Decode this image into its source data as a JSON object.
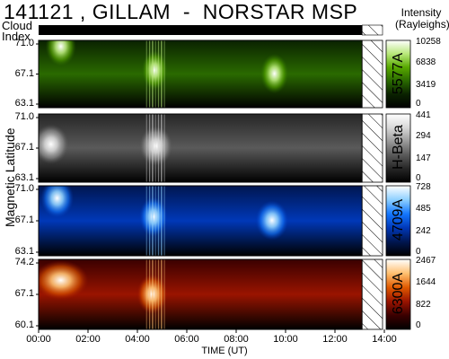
{
  "header": {
    "title": "141121 , GILLAM  -  NORSTAR MSP",
    "cloud_label": "Cloud Index",
    "intensity_label": "Intensity (Rayleighs)"
  },
  "axes": {
    "ylabel": "Magnetic  Latitude",
    "xlabel": "TIME (UT)"
  },
  "chart_data": {
    "type": "heatmap",
    "title": "141121 , GILLAM  -  NORSTAR MSP",
    "xlabel": "TIME (UT)",
    "ylabel": "Magnetic  Latitude",
    "x_ticks": [
      "00:00",
      "02:00",
      "04:00",
      "06:00",
      "08:00",
      "10:00",
      "12:00",
      "14:00"
    ],
    "xlim_hours": [
      0,
      14
    ],
    "data_end_hour": 13.1,
    "cloud_index": {
      "label": "Cloud Index",
      "clear_until_hour": 13.1
    },
    "panels": [
      {
        "band": "5577A",
        "y_ticks": [
          "71.0",
          "67.1",
          "63.1"
        ],
        "ylim": [
          63.1,
          71.0
        ],
        "colorbar_ticks": [
          "10258",
          "6838",
          "3419",
          "0"
        ],
        "colormap": "green",
        "bright_features": [
          {
            "hour_start": 0.5,
            "hour_end": 1.3,
            "latitude": 70.3
          },
          {
            "hour_start": 4.4,
            "hour_end": 5.0,
            "latitude": 67.5
          },
          {
            "hour_start": 9.2,
            "hour_end": 9.9,
            "latitude": 67.1
          }
        ]
      },
      {
        "band": "H-Beta",
        "y_ticks": [
          "71.0",
          "67.1",
          "63.1"
        ],
        "ylim": [
          63.1,
          71.0
        ],
        "colorbar_ticks": [
          "441",
          "294",
          "147",
          "0"
        ],
        "colormap": "gray",
        "bright_features": [
          {
            "hour_start": 0.0,
            "hour_end": 1.0,
            "latitude": 67.5
          },
          {
            "hour_start": 4.3,
            "hour_end": 5.2,
            "latitude": 67.3
          }
        ]
      },
      {
        "band": "4709A",
        "y_ticks": [
          "71.0",
          "67.1",
          "63.1"
        ],
        "ylim": [
          63.1,
          71.0
        ],
        "colorbar_ticks": [
          "728",
          "485",
          "242",
          "0"
        ],
        "colormap": "blue",
        "bright_features": [
          {
            "hour_start": 0.3,
            "hour_end": 1.2,
            "latitude": 69.6
          },
          {
            "hour_start": 4.3,
            "hour_end": 5.0,
            "latitude": 67.5
          },
          {
            "hour_start": 9.0,
            "hour_end": 9.9,
            "latitude": 67.1
          }
        ]
      },
      {
        "band": "6300A",
        "y_ticks": [
          "74.2",
          "67.1",
          "60.1"
        ],
        "ylim": [
          60.1,
          74.2
        ],
        "colorbar_ticks": [
          "2467",
          "1644",
          "822",
          "0"
        ],
        "colormap": "red",
        "bright_features": [
          {
            "hour_start": 0.0,
            "hour_end": 1.8,
            "latitude": 70.0
          },
          {
            "hour_start": 4.2,
            "hour_end": 5.0,
            "latitude": 67.2
          }
        ]
      }
    ]
  }
}
